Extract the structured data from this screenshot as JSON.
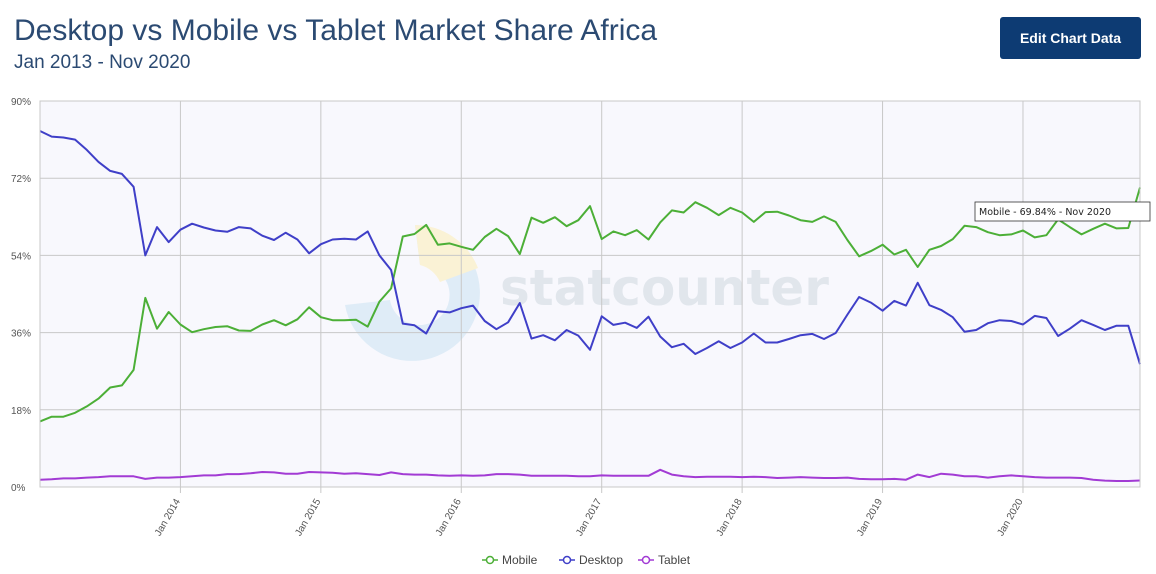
{
  "header": {
    "title": "Desktop vs Mobile vs Tablet Market Share Africa",
    "subtitle": "Jan 2013 - Nov 2020",
    "edit_button_label": "Edit Chart Data"
  },
  "watermark": {
    "text": "statcounter"
  },
  "tooltip": {
    "text": "Mobile - 69.84% - Nov 2020"
  },
  "colors": {
    "Mobile": "#4caf37",
    "Desktop": "#3f3fc8",
    "Tablet": "#a23bd4"
  },
  "chart_data": {
    "type": "line",
    "x_start": "2013-01",
    "x_end": "2020-11",
    "x_ticks": [
      "Jan 2014",
      "Jan 2015",
      "Jan 2016",
      "Jan 2017",
      "Jan 2018",
      "Jan 2019",
      "Jan 2020"
    ],
    "y_ticks": [
      "0%",
      "18%",
      "36%",
      "54%",
      "72%",
      "90%"
    ],
    "ylim": [
      0,
      90
    ],
    "grid": true,
    "legend_position": "bottom",
    "series": [
      {
        "name": "Mobile",
        "values": [
          15.3,
          16.4,
          16.4,
          17.3,
          18.8,
          20.6,
          23.2,
          23.7,
          27.3,
          44.1,
          36.9,
          40.8,
          37.9,
          36.1,
          36.8,
          37.3,
          37.5,
          36.5,
          36.4,
          37.9,
          38.9,
          37.7,
          39.1,
          41.9,
          39.6,
          38.9,
          38.9,
          39.0,
          37.4,
          43.2,
          46.3,
          58.4,
          59.0,
          61.1,
          56.5,
          56.8,
          56.0,
          55.3,
          58.3,
          60.2,
          58.5,
          54.3,
          62.8,
          61.6,
          62.9,
          60.8,
          62.2,
          65.5,
          57.8,
          59.6,
          58.7,
          59.9,
          57.7,
          61.7,
          64.5,
          64.0,
          66.4,
          65.1,
          63.4,
          65.1,
          64.0,
          61.8,
          64.1,
          64.2,
          63.3,
          62.2,
          61.8,
          63.1,
          61.8,
          57.6,
          53.8,
          55.0,
          56.5,
          54.2,
          55.3,
          51.3,
          55.3,
          56.2,
          57.8,
          60.9,
          60.6,
          59.4,
          58.7,
          58.9,
          59.8,
          58.2,
          58.7,
          62.4,
          60.6,
          58.9,
          60.2,
          61.4,
          60.3,
          60.4,
          69.84
        ]
      },
      {
        "name": "Desktop",
        "values": [
          83.0,
          81.7,
          81.5,
          81.0,
          78.6,
          75.8,
          73.7,
          73.0,
          70.0,
          54.0,
          60.6,
          57.1,
          60.0,
          61.4,
          60.5,
          59.8,
          59.5,
          60.6,
          60.3,
          58.6,
          57.6,
          59.3,
          57.7,
          54.5,
          56.6,
          57.7,
          57.9,
          57.7,
          59.6,
          54.0,
          50.6,
          38.1,
          37.7,
          35.8,
          41.0,
          40.7,
          41.7,
          42.3,
          38.7,
          36.8,
          38.4,
          42.9,
          34.6,
          35.4,
          34.2,
          36.6,
          35.3,
          32.0,
          39.8,
          37.8,
          38.3,
          37.1,
          39.7,
          35.1,
          32.6,
          33.4,
          31.0,
          32.4,
          34.0,
          32.4,
          33.7,
          35.8,
          33.7,
          33.7,
          34.5,
          35.4,
          35.7,
          34.5,
          35.9,
          40.2,
          44.3,
          43.0,
          41.1,
          43.4,
          42.3,
          47.6,
          42.4,
          41.3,
          39.6,
          36.2,
          36.6,
          38.2,
          38.9,
          38.7,
          37.9,
          39.9,
          39.4,
          35.2,
          36.9,
          38.9,
          37.8,
          36.6,
          37.6,
          37.6,
          28.64
        ]
      },
      {
        "name": "Tablet",
        "values": [
          1.7,
          1.8,
          2.0,
          2.0,
          2.2,
          2.3,
          2.5,
          2.5,
          2.5,
          1.9,
          2.2,
          2.2,
          2.3,
          2.5,
          2.7,
          2.7,
          3.0,
          3.0,
          3.2,
          3.5,
          3.4,
          3.1,
          3.1,
          3.5,
          3.4,
          3.3,
          3.1,
          3.2,
          3.0,
          2.8,
          3.4,
          3.0,
          2.9,
          2.9,
          2.7,
          2.6,
          2.7,
          2.6,
          2.7,
          3.0,
          3.0,
          2.9,
          2.6,
          2.6,
          2.6,
          2.6,
          2.5,
          2.5,
          2.7,
          2.6,
          2.6,
          2.6,
          2.6,
          4.0,
          2.9,
          2.5,
          2.3,
          2.4,
          2.4,
          2.4,
          2.3,
          2.4,
          2.3,
          2.1,
          2.2,
          2.3,
          2.2,
          2.1,
          2.1,
          2.2,
          1.9,
          1.8,
          1.8,
          1.9,
          1.7,
          2.9,
          2.3,
          3.1,
          2.9,
          2.5,
          2.5,
          2.2,
          2.5,
          2.7,
          2.5,
          2.3,
          2.2,
          2.2,
          2.2,
          2.1,
          1.7,
          1.5,
          1.4,
          1.4,
          1.52
        ]
      }
    ]
  }
}
